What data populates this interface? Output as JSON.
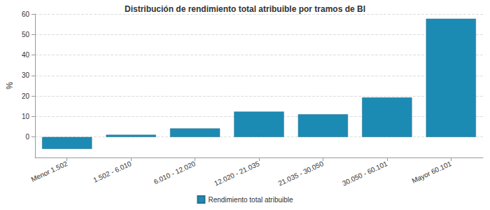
{
  "chart_data": {
    "type": "bar",
    "title": "Distribución de rendimiento total atribuible por tramos de BI",
    "y_label": "%",
    "categories": [
      "Menor 1.502",
      "1.502 - 6.010",
      "6.010 - 12.020",
      "12.020 - 21.035",
      "21.035 - 30.050",
      "30.050 - 60.101",
      "Mayor 60.101"
    ],
    "series": [
      {
        "name": "Rendimiento total atribuible",
        "color": "#1b8bb4",
        "values": [
          -5.8,
          1.1,
          4.2,
          12.4,
          11.1,
          19.3,
          57.7
        ]
      }
    ],
    "ylim": [
      -10,
      60
    ],
    "yticks": [
      0,
      10,
      20,
      30,
      40,
      50,
      60
    ],
    "grid": true,
    "legend": "bottom"
  }
}
